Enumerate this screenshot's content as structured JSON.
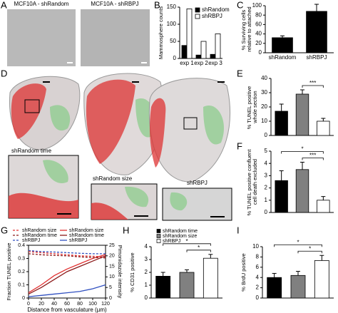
{
  "panel_labels": [
    "A",
    "B",
    "C",
    "D",
    "E",
    "F",
    "G",
    "H",
    "I"
  ],
  "image_titles": [
    "MCF10A - shRandom",
    "MCF10A - shRBPJ"
  ],
  "image_captions": [
    "shRandom time",
    "shRandom size",
    "shRBPJ"
  ],
  "chart_data": [
    {
      "type": "bar",
      "y_label": "Mammosphere counts",
      "categories": [
        "exp 1",
        "exp 2",
        "exp 3"
      ],
      "series": [
        {
          "name": "shRandom",
          "color": "#000000",
          "values": [
            38,
            10,
            12
          ]
        },
        {
          "name": "shRBPJ",
          "color": "#ffffff",
          "values": [
            145,
            50,
            72
          ]
        }
      ],
      "ylim": [
        0,
        150
      ],
      "yticks": [
        0,
        50,
        100,
        150
      ]
    },
    {
      "type": "bar",
      "y_label": "% Surviving cells relative to attached",
      "categories": [
        "shRandom",
        "shRBPJ"
      ],
      "values": [
        32,
        88
      ],
      "errors": [
        4,
        15
      ],
      "color": "#000000",
      "ylim": [
        0,
        100
      ],
      "yticks": [
        0,
        20,
        40,
        60,
        80,
        100
      ],
      "annotations": [
        "*"
      ]
    },
    {
      "type": "bar",
      "y_label": "% TUNEL positive whole section",
      "values": [
        17,
        29,
        10
      ],
      "errors": [
        5,
        3,
        2
      ],
      "colors": [
        "#000000",
        "#808080",
        "#ffffff"
      ],
      "ylim": [
        0,
        40
      ],
      "yticks": [
        0,
        10,
        20,
        30,
        40
      ],
      "annotations": [
        "***"
      ]
    },
    {
      "type": "bar",
      "y_label": "% TUNEL positive confluent cell death excluded",
      "values": [
        2.6,
        3.5,
        1.0
      ],
      "errors": [
        0.8,
        0.6,
        0.3
      ],
      "colors": [
        "#000000",
        "#808080",
        "#ffffff"
      ],
      "ylim": [
        0,
        5
      ],
      "yticks": [
        0,
        1,
        2,
        3,
        4,
        5
      ],
      "annotations": [
        "*",
        "***"
      ]
    },
    {
      "type": "line",
      "y_label": "Fraction TUNEL positive",
      "y2_label": "Pimonidazole intensity",
      "x_label": "Distance from vasculature (µm)",
      "x": [
        0,
        20,
        40,
        60,
        80,
        100,
        120
      ],
      "xlim": [
        0,
        120
      ],
      "xticks": [
        0,
        20,
        40,
        60,
        80,
        100,
        120
      ],
      "ylim": [
        0,
        0.4
      ],
      "yticks": [
        0,
        0.1,
        0.2,
        0.3,
        0.4
      ],
      "y2lim": [
        0,
        25
      ],
      "y2ticks": [
        0,
        5,
        10,
        15,
        20,
        25
      ],
      "series": [
        {
          "name": "shRandom size",
          "color": "#e03030",
          "style": "dashed",
          "axis": "y2",
          "values": [
            22,
            21.5,
            21,
            20.5,
            20,
            19.8,
            19.5
          ]
        },
        {
          "name": "shRandom size",
          "color": "#e03030",
          "style": "solid",
          "values": [
            0.04,
            0.1,
            0.17,
            0.22,
            0.26,
            0.3,
            0.33
          ]
        },
        {
          "name": "shRandom time",
          "color": "#8b1a1a",
          "style": "dashed",
          "axis": "y2",
          "values": [
            21,
            20.5,
            20.2,
            20,
            19.5,
            19.2,
            19
          ]
        },
        {
          "name": "shRandom time",
          "color": "#8b1a1a",
          "style": "solid",
          "values": [
            0.03,
            0.08,
            0.14,
            0.2,
            0.24,
            0.28,
            0.32
          ]
        },
        {
          "name": "shRBPJ",
          "color": "#3050c0",
          "style": "dashed",
          "axis": "y2",
          "values": [
            22.5,
            22,
            21.8,
            21.5,
            21.2,
            21,
            21
          ]
        },
        {
          "name": "shRBPJ",
          "color": "#3050c0",
          "style": "solid",
          "values": [
            0.01,
            0.02,
            0.03,
            0.04,
            0.05,
            0.07,
            0.1
          ]
        }
      ]
    },
    {
      "type": "bar",
      "y_label": "% CD31 positive",
      "values": [
        1.7,
        2.0,
        3.1
      ],
      "errors": [
        0.3,
        0.2,
        0.3
      ],
      "colors": [
        "#000000",
        "#808080",
        "#ffffff"
      ],
      "legend": [
        "shRandom time",
        "shRandom size",
        "shRBPJ"
      ],
      "ylim": [
        0,
        4
      ],
      "yticks": [
        0,
        1,
        2,
        3,
        4
      ],
      "annotations": [
        "*",
        "*"
      ]
    },
    {
      "type": "bar",
      "y_label": "% BrdU positive",
      "values": [
        4.0,
        4.4,
        7.3
      ],
      "errors": [
        0.8,
        0.8,
        1.0
      ],
      "colors": [
        "#000000",
        "#808080",
        "#ffffff"
      ],
      "ylim": [
        0,
        10
      ],
      "yticks": [
        0,
        2,
        4,
        6,
        8,
        10
      ],
      "annotations": [
        "*",
        "*"
      ]
    }
  ]
}
